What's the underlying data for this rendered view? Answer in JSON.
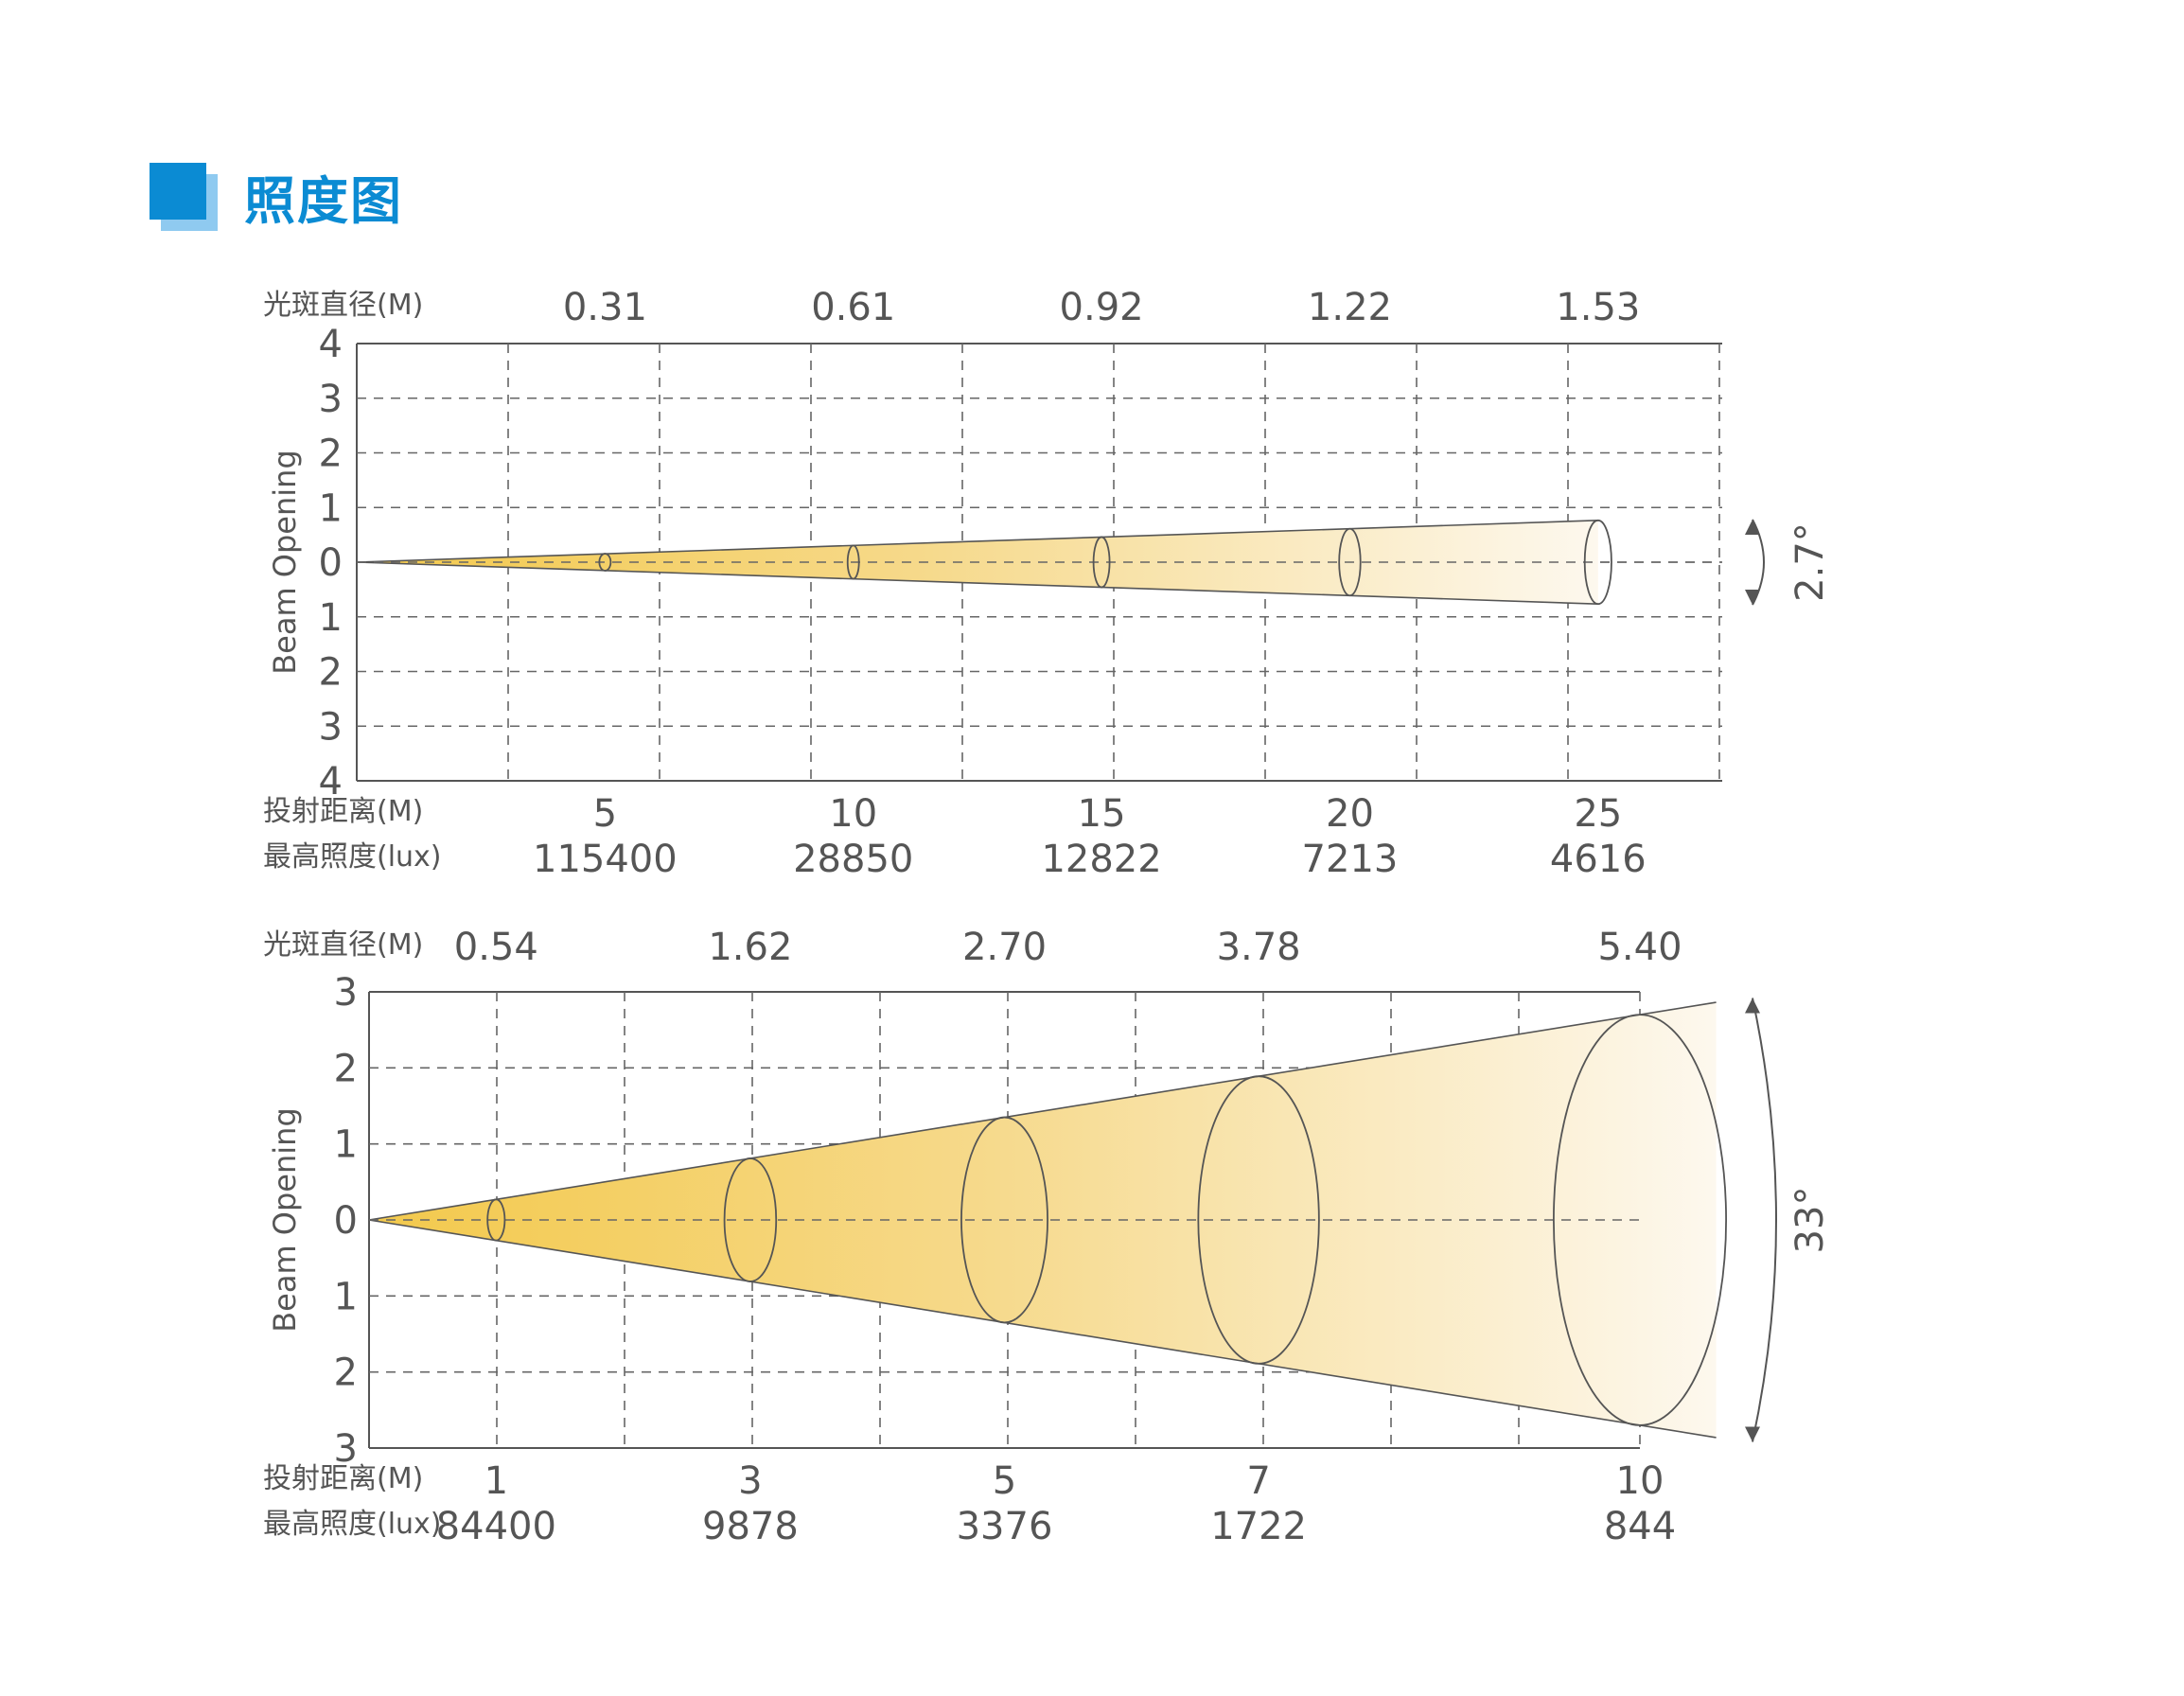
{
  "page": {
    "title": "照度图"
  },
  "colors": {
    "accent": "#0b8bd3",
    "beam_warm": "#f3c94c",
    "grid": "#555555",
    "text": "#555555"
  },
  "chart_data": [
    {
      "type": "beam-diagram",
      "ylabel": "Beam Opening",
      "ytick_labels": [
        "4",
        "3",
        "2",
        "1",
        "0",
        "1",
        "2",
        "3",
        "4"
      ],
      "ylim": [
        -4,
        4
      ],
      "xlim": [
        0,
        27.5
      ],
      "beam_angle": "2.7°",
      "rows": [
        {
          "label": "光斑直径(M)",
          "values": [
            "0.31",
            "0.61",
            "0.92",
            "1.22",
            "1.53"
          ]
        },
        {
          "label": "投射距离(M)",
          "values": [
            "5",
            "10",
            "15",
            "20",
            "25"
          ]
        },
        {
          "label": "最高照度(lux)",
          "values": [
            "115400",
            "28850",
            "12822",
            "7213",
            "4616"
          ]
        }
      ],
      "distances": [
        5,
        10,
        15,
        20,
        25
      ],
      "diameters": [
        0.31,
        0.61,
        0.92,
        1.22,
        1.53
      ]
    },
    {
      "type": "beam-diagram",
      "ylabel": "Beam Opening",
      "ytick_labels": [
        "3",
        "2",
        "1",
        "0",
        "1",
        "2",
        "3"
      ],
      "ylim": [
        -3,
        3
      ],
      "xlim": [
        0,
        10
      ],
      "beam_angle": "33°",
      "rows": [
        {
          "label": "光斑直径(M)",
          "values": [
            "0.54",
            "1.62",
            "2.70",
            "3.78",
            "5.40"
          ]
        },
        {
          "label": "投射距离(M)",
          "values": [
            "1",
            "3",
            "5",
            "7",
            "10"
          ]
        },
        {
          "label": "最高照度(lux)",
          "values": [
            "84400",
            "9878",
            "3376",
            "1722",
            "844"
          ]
        }
      ],
      "distances": [
        1,
        3,
        5,
        7,
        10
      ],
      "diameters": [
        0.54,
        1.62,
        2.7,
        3.78,
        5.4
      ]
    }
  ]
}
